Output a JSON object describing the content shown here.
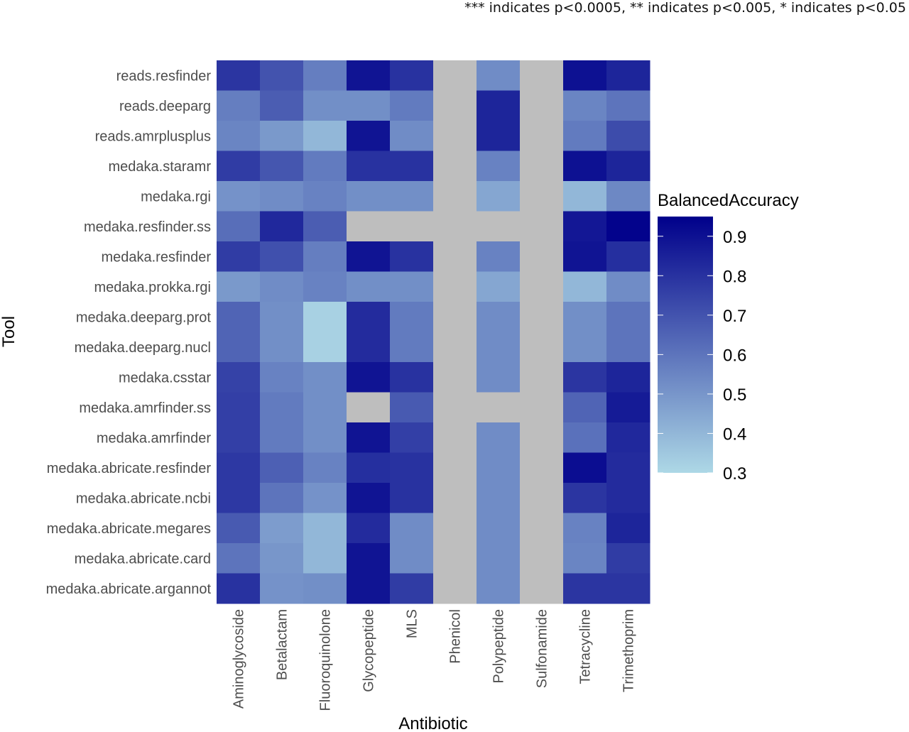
{
  "note": "*** indicates p<0.0005, ** indicates p<0.005, * indicates p<0.05",
  "chart_data": {
    "type": "heatmap",
    "xlabel": "Antibiotic",
    "ylabel": "Tool",
    "x": [
      "Aminoglycoside",
      "Betalactam",
      "Fluoroquinolone",
      "Glycopeptide",
      "MLS",
      "Phenicol",
      "Polypeptide",
      "Sulfonamide",
      "Tetracycline",
      "Trimethoprim"
    ],
    "y": [
      "reads.resfinder",
      "reads.deeparg",
      "reads.amrplusplus",
      "medaka.staramr",
      "medaka.rgi",
      "medaka.resfinder.ss",
      "medaka.resfinder",
      "medaka.prokka.rgi",
      "medaka.deeparg.prot",
      "medaka.deeparg.nucl",
      "medaka.csstar",
      "medaka.amrfinder.ss",
      "medaka.amrfinder",
      "medaka.abricate.resfinder",
      "medaka.abricate.ncbi",
      "medaka.abricate.megares",
      "medaka.abricate.card",
      "medaka.abricate.argannot"
    ],
    "values": [
      [
        0.79,
        0.7,
        0.57,
        0.89,
        0.8,
        null,
        0.53,
        null,
        0.9,
        0.84
      ],
      [
        0.57,
        0.67,
        0.52,
        0.52,
        0.58,
        null,
        0.84,
        null,
        0.55,
        0.6
      ],
      [
        0.55,
        0.49,
        0.4,
        0.89,
        0.53,
        null,
        0.84,
        null,
        0.58,
        0.72
      ],
      [
        0.77,
        0.69,
        0.58,
        0.8,
        0.8,
        null,
        0.56,
        null,
        0.9,
        0.84
      ],
      [
        0.51,
        0.53,
        0.56,
        0.52,
        0.52,
        null,
        0.45,
        null,
        0.4,
        0.54
      ],
      [
        0.62,
        0.83,
        0.67,
        null,
        null,
        null,
        null,
        null,
        0.88,
        0.94
      ],
      [
        0.77,
        0.71,
        0.57,
        0.89,
        0.8,
        null,
        0.56,
        null,
        0.89,
        0.81
      ],
      [
        0.49,
        0.53,
        0.56,
        0.52,
        0.52,
        null,
        0.45,
        null,
        0.4,
        0.53
      ],
      [
        0.65,
        0.52,
        0.32,
        0.82,
        0.58,
        null,
        0.53,
        null,
        0.52,
        0.6
      ],
      [
        0.65,
        0.52,
        0.32,
        0.82,
        0.58,
        null,
        0.53,
        null,
        0.52,
        0.6
      ],
      [
        0.75,
        0.56,
        0.52,
        0.89,
        0.8,
        null,
        0.53,
        null,
        0.79,
        0.84
      ],
      [
        0.76,
        0.58,
        0.52,
        null,
        0.68,
        null,
        null,
        null,
        0.65,
        0.87
      ],
      [
        0.76,
        0.58,
        0.52,
        0.89,
        0.76,
        null,
        0.53,
        null,
        0.61,
        0.83
      ],
      [
        0.78,
        0.66,
        0.56,
        0.81,
        0.8,
        null,
        0.53,
        null,
        0.91,
        0.82
      ],
      [
        0.78,
        0.6,
        0.51,
        0.89,
        0.8,
        null,
        0.53,
        null,
        0.79,
        0.82
      ],
      [
        0.68,
        0.48,
        0.4,
        0.82,
        0.53,
        null,
        0.53,
        null,
        0.56,
        0.84
      ],
      [
        0.6,
        0.5,
        0.4,
        0.89,
        0.53,
        null,
        0.53,
        null,
        0.55,
        0.77
      ],
      [
        0.8,
        0.51,
        0.52,
        0.89,
        0.77,
        null,
        0.53,
        null,
        0.79,
        0.79
      ]
    ],
    "missing_color": "#bebebe",
    "legend": {
      "title": "BalancedAccuracy",
      "placement": "right",
      "range": [
        0.3,
        0.95
      ],
      "ticks": [
        "0.9",
        "0.8",
        "0.7",
        "0.6",
        "0.5",
        "0.4",
        "0.3"
      ],
      "low_color": "#add8e6",
      "high_color": "#00008b"
    },
    "grid": false
  }
}
